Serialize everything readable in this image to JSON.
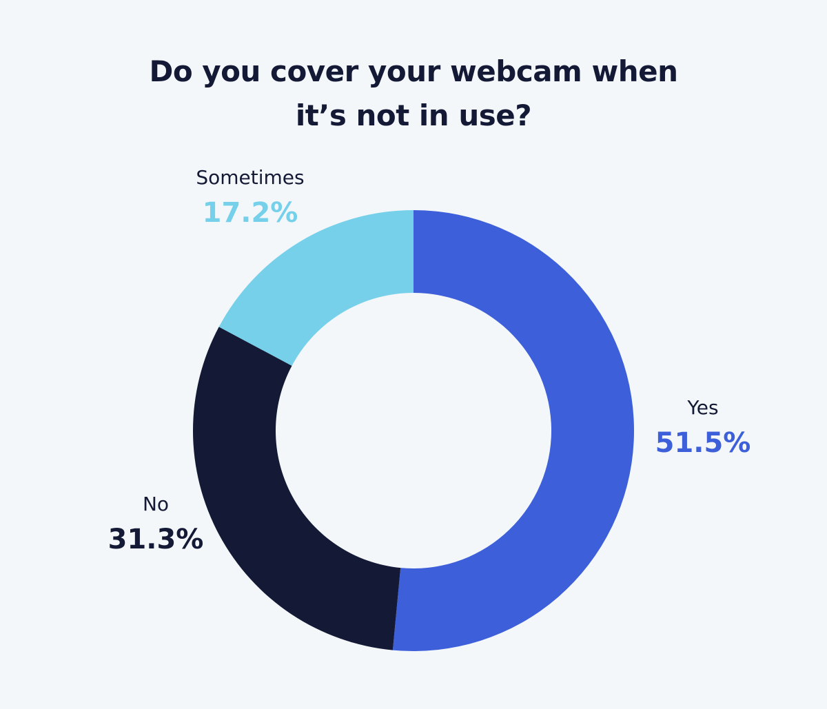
{
  "chart_data": {
    "type": "pie",
    "title": "Do you cover your webcam when it’s not in use?",
    "categories": [
      "Yes",
      "No",
      "Sometimes"
    ],
    "values": [
      51.5,
      31.3,
      17.2
    ],
    "value_labels": [
      "51.5%",
      "31.3%",
      "17.2%"
    ],
    "colors": [
      "#3d5fd9",
      "#141a35",
      "#76d0ea"
    ]
  }
}
